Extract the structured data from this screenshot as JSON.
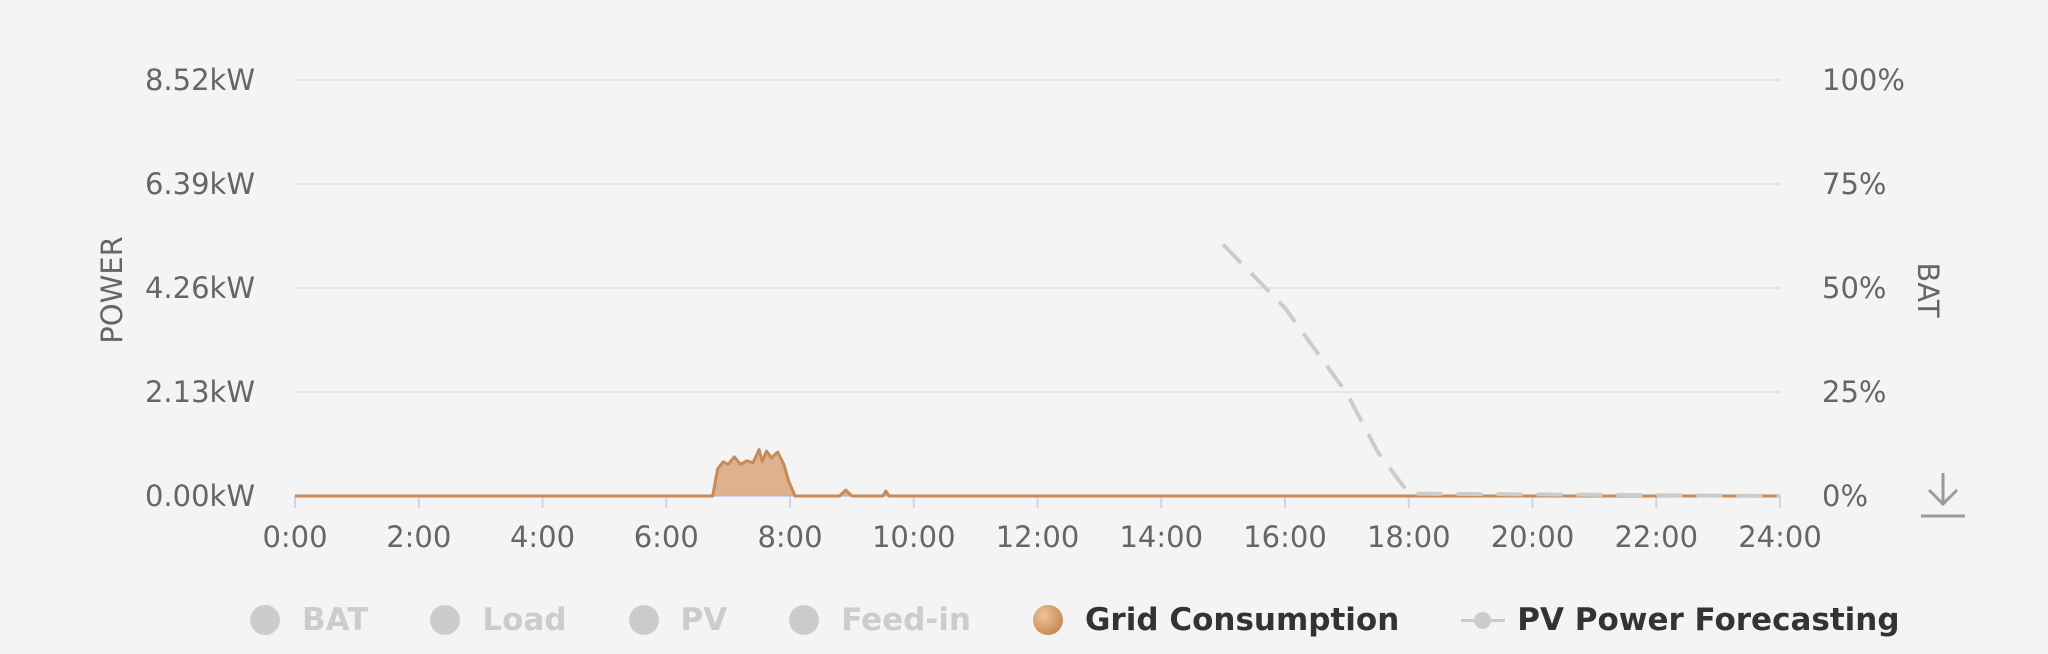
{
  "chart_data": {
    "type": "area",
    "xlabel": "",
    "y_left_label": "POWER",
    "y_right_label": "BAT",
    "x_ticks": [
      "0:00",
      "2:00",
      "4:00",
      "6:00",
      "8:00",
      "10:00",
      "12:00",
      "14:00",
      "16:00",
      "18:00",
      "20:00",
      "22:00",
      "24:00"
    ],
    "x_range_hours": [
      0,
      24
    ],
    "y_left_ticks": [
      "0.00kW",
      "2.13kW",
      "4.26kW",
      "6.39kW",
      "8.52kW"
    ],
    "y_left_range_kw": [
      0,
      8.52
    ],
    "y_right_ticks": [
      "0%",
      "25%",
      "50%",
      "75%",
      "100%"
    ],
    "y_right_range_pct": [
      0,
      100
    ],
    "grid": true,
    "legend_position": "bottom",
    "series": [
      {
        "name": "Grid Consumption",
        "kind": "area",
        "color": "#c98a55",
        "fill": "#d9a47c",
        "visible": true,
        "x": [
          0,
          6.75,
          6.83,
          6.92,
          7.0,
          7.1,
          7.2,
          7.3,
          7.4,
          7.5,
          7.55,
          7.62,
          7.7,
          7.8,
          7.9,
          7.98,
          8.08,
          8.1,
          8.8,
          8.9,
          9.0,
          9.5,
          9.55,
          9.6,
          24
        ],
        "y": [
          0,
          0,
          0.55,
          0.7,
          0.65,
          0.8,
          0.65,
          0.72,
          0.68,
          0.95,
          0.7,
          0.92,
          0.78,
          0.9,
          0.65,
          0.3,
          0,
          0,
          0,
          0.12,
          0,
          0,
          0.1,
          0,
          0
        ]
      },
      {
        "name": "PV Power Forecasting",
        "kind": "line",
        "dashed": true,
        "color": "#cccccc",
        "visible": true,
        "x": [
          15.0,
          16.0,
          17.0,
          17.5,
          18.0,
          24.0
        ],
        "y": [
          5.15,
          3.85,
          2.1,
          0.9,
          0.05,
          0
        ]
      },
      {
        "name": "BAT",
        "visible": false
      },
      {
        "name": "Load",
        "visible": false
      },
      {
        "name": "PV",
        "visible": false
      },
      {
        "name": "Feed-in",
        "visible": false
      }
    ]
  },
  "legend": [
    {
      "label": "BAT",
      "state": "off",
      "marker": "dot"
    },
    {
      "label": "Load",
      "state": "off",
      "marker": "dot"
    },
    {
      "label": "PV",
      "state": "off",
      "marker": "dot"
    },
    {
      "label": "Feed-in",
      "state": "off",
      "marker": "dot"
    },
    {
      "label": "Grid Consumption",
      "state": "on",
      "marker": "dot-grid"
    },
    {
      "label": "PV Power Forecasting",
      "state": "on",
      "marker": "line"
    }
  ],
  "icons": {
    "download": "download-icon"
  },
  "colors": {
    "grid_line": "#e4e4e4",
    "axis_tick": "#ccd6eb",
    "label": "#666666",
    "grid_consumption": "#c98a55",
    "forecast": "#cccccc"
  }
}
